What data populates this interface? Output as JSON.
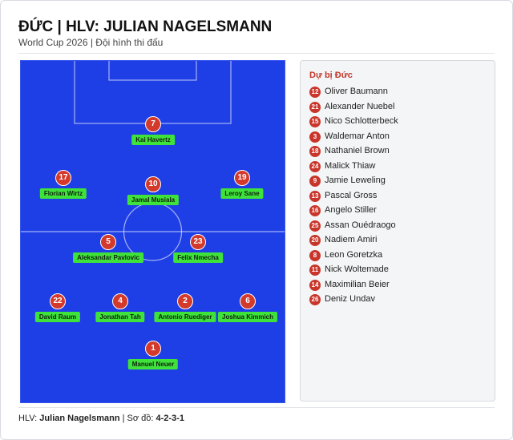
{
  "header": {
    "title": "ĐỨC | HLV: JULIAN NAGELSMANN",
    "subtitle": "World Cup 2026 | Đội hình thi đấu"
  },
  "lineup": [
    {
      "number": 7,
      "name": "Kai Havertz"
    },
    {
      "number": 17,
      "name": "Florian Wirtz"
    },
    {
      "number": 10,
      "name": "Jamal Musiala"
    },
    {
      "number": 19,
      "name": "Leroy Sane"
    },
    {
      "number": 5,
      "name": "Aleksandar Pavlovic"
    },
    {
      "number": 23,
      "name": "Felix Nmecha"
    },
    {
      "number": 22,
      "name": "David Raum"
    },
    {
      "number": 4,
      "name": "Jonathan Tah"
    },
    {
      "number": 2,
      "name": "Antonio Ruediger"
    },
    {
      "number": 6,
      "name": "Joshua Kimmich"
    },
    {
      "number": 1,
      "name": "Manuel Neuer"
    }
  ],
  "bench": {
    "title": "Dự bị Đức",
    "players": [
      {
        "number": 12,
        "name": "Oliver Baumann"
      },
      {
        "number": 21,
        "name": "Alexander Nuebel"
      },
      {
        "number": 15,
        "name": "Nico Schlotterbeck"
      },
      {
        "number": 3,
        "name": "Waldemar Anton"
      },
      {
        "number": 18,
        "name": "Nathaniel Brown"
      },
      {
        "number": 24,
        "name": "Malick Thiaw"
      },
      {
        "number": 9,
        "name": "Jamie Leweling"
      },
      {
        "number": 13,
        "name": "Pascal Gross"
      },
      {
        "number": 16,
        "name": "Angelo Stiller"
      },
      {
        "number": 25,
        "name": "Assan Ouédraogo"
      },
      {
        "number": 20,
        "name": "Nadiem Amiri"
      },
      {
        "number": 8,
        "name": "Leon Goretzka"
      },
      {
        "number": 11,
        "name": "Nick Woltemade"
      },
      {
        "number": 14,
        "name": "Maximilian Beier"
      },
      {
        "number": 26,
        "name": "Deniz Undav"
      }
    ]
  },
  "footer": {
    "coach_label": "HLV:",
    "coach": "Julian Nagelsmann",
    "separator": "|",
    "formation_label": "Sơ đồ:",
    "formation": "4-2-3-1"
  }
}
